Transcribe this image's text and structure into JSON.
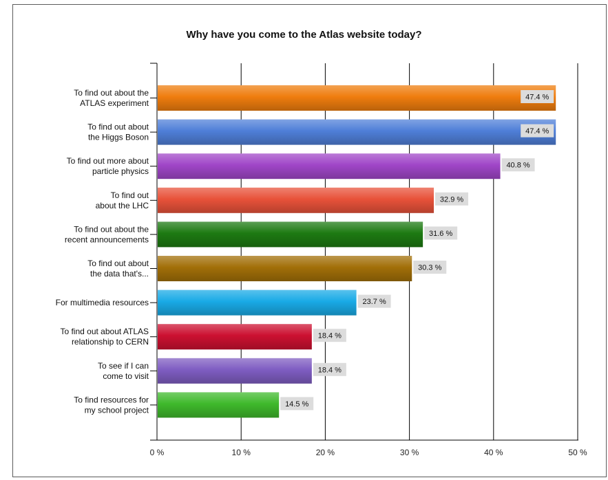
{
  "chart_data": {
    "type": "bar",
    "orientation": "horizontal",
    "title": "Why have you come to the Atlas website today?",
    "xlabel": "",
    "ylabel": "",
    "xlim": [
      0,
      50
    ],
    "grid": true,
    "legend": "none",
    "x_ticks": [
      "0 %",
      "10 %",
      "20 %",
      "30 %",
      "40 %",
      "50 %"
    ],
    "tick_values": [
      0,
      10,
      20,
      30,
      40,
      50
    ],
    "categories": [
      [
        "To find out about the",
        "ATLAS experiment"
      ],
      [
        "To find out about",
        "the Higgs Boson"
      ],
      [
        "To find out more about",
        "particle physics"
      ],
      [
        "To find out",
        "about the LHC"
      ],
      [
        "To find out about the",
        "recent announcements"
      ],
      [
        "To find out about",
        "the data that's..."
      ],
      [
        "For multimedia resources"
      ],
      [
        "To find out about ATLAS",
        "relationship to CERN"
      ],
      [
        "To see if I can",
        "come to visit"
      ],
      [
        "To find resources for",
        "my school project"
      ]
    ],
    "values": [
      47.4,
      47.4,
      40.8,
      32.9,
      31.6,
      30.3,
      23.7,
      18.4,
      18.4,
      14.5
    ],
    "data_labels": [
      "47.4 %",
      "47.4 %",
      "40.8 %",
      "32.9 %",
      "31.6 %",
      "30.3 %",
      "23.7 %",
      "18.4 %",
      "18.4 %",
      "14.5 %"
    ],
    "bar_colors": [
      "#ef7d0e",
      "#4f7fd8",
      "#a046c8",
      "#e8523a",
      "#1d7a12",
      "#a26f08",
      "#19aae6",
      "#cc1131",
      "#7f5dc2",
      "#3fb92c"
    ],
    "label_box_color": "#dcdcdc",
    "grid_color": "#000000"
  }
}
